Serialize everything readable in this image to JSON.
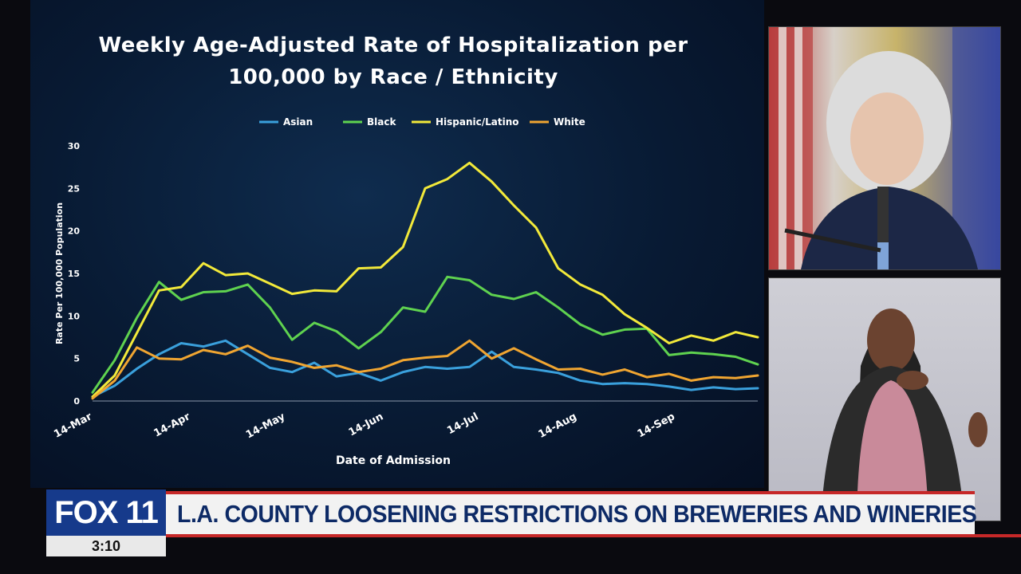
{
  "chart_data": {
    "type": "line",
    "title": "Weekly Age-Adjusted Rate of Hospitalization per 100,000 by Race / Ethnicity",
    "title_lines": [
      "Weekly Age-Adjusted Rate of Hospitalization per",
      "100,000 by Race / Ethnicity"
    ],
    "xlabel": "Date of Admission",
    "ylabel": "Rate Per 100,000 Population",
    "ylim": [
      0,
      30
    ],
    "yticks": [
      0,
      5,
      10,
      15,
      20,
      25,
      30
    ],
    "xlim": [
      0,
      30
    ],
    "xticks": [
      {
        "label": "14-Mar",
        "x": 0
      },
      {
        "label": "14-Apr",
        "x": 4.43
      },
      {
        "label": "14-May",
        "x": 8.71
      },
      {
        "label": "14-Jun",
        "x": 13.14
      },
      {
        "label": "14-Jul",
        "x": 17.43
      },
      {
        "label": "14-Aug",
        "x": 21.86
      },
      {
        "label": "14-Sep",
        "x": 26.29
      }
    ],
    "legend": "top",
    "grid": false,
    "x": [
      0,
      1,
      2,
      3,
      4,
      5,
      6,
      7,
      8,
      9,
      10,
      11,
      12,
      13,
      14,
      15,
      16,
      17,
      18,
      19,
      20,
      21,
      22,
      23,
      24,
      25,
      26,
      27,
      28,
      29,
      30
    ],
    "series": [
      {
        "name": "Asian",
        "color": "#3aa0dc",
        "values": [
          0.5,
          1.8,
          3.8,
          5.5,
          6.8,
          6.4,
          7.1,
          5.5,
          3.9,
          3.4,
          4.5,
          2.9,
          3.3,
          2.4,
          3.4,
          4.0,
          3.8,
          4.0,
          5.8,
          4.0,
          3.7,
          3.3,
          2.4,
          2.0,
          2.1,
          2.0,
          1.7,
          1.3,
          1.6,
          1.4,
          1.5
        ]
      },
      {
        "name": "Black",
        "color": "#5fd24f",
        "values": [
          1.0,
          4.8,
          9.8,
          14.0,
          11.9,
          12.8,
          12.9,
          13.7,
          11.0,
          7.2,
          9.2,
          8.2,
          6.2,
          8.1,
          11.0,
          10.5,
          14.6,
          14.2,
          12.5,
          12.0,
          12.8,
          11.0,
          9.0,
          7.8,
          8.4,
          8.5,
          5.4,
          5.7,
          5.5,
          5.2,
          4.3
        ]
      },
      {
        "name": "Hispanic/Latino",
        "color": "#f2e93a",
        "values": [
          0.5,
          3.0,
          8.0,
          13.0,
          13.4,
          16.2,
          14.8,
          15.0,
          13.8,
          12.6,
          13.0,
          12.9,
          15.6,
          15.7,
          18.1,
          25.0,
          26.1,
          28.0,
          25.8,
          23.0,
          20.4,
          15.6,
          13.7,
          12.5,
          10.2,
          8.6,
          6.8,
          7.7,
          7.1,
          8.1,
          7.5
        ]
      },
      {
        "name": "White",
        "color": "#f0a531",
        "values": [
          0.3,
          2.4,
          6.3,
          5.0,
          4.9,
          6.0,
          5.5,
          6.5,
          5.1,
          4.6,
          3.9,
          4.2,
          3.4,
          3.8,
          4.8,
          5.1,
          5.3,
          7.1,
          5.0,
          6.2,
          4.9,
          3.7,
          3.8,
          3.1,
          3.7,
          2.8,
          3.2,
          2.4,
          2.8,
          2.7,
          3.0
        ]
      }
    ]
  },
  "broadcast": {
    "logo_text": "FOX 11",
    "time": "3:10",
    "headline": "L.A. COUNTY LOOSENING RESTRICTIONS ON BREWERIES AND WINERIES"
  }
}
